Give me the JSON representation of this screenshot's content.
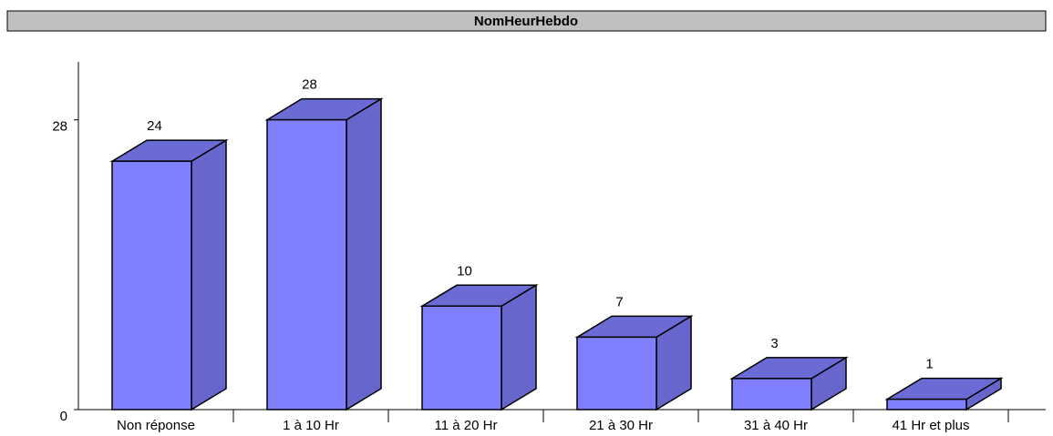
{
  "chart_data": {
    "type": "bar3d",
    "title": "NomHeurHebdo",
    "categories": [
      "Non réponse",
      "1 à 10 Hr",
      "11 à 20 Hr",
      "21 à 30 Hr",
      "31 à 40 Hr",
      "41 Hr et plus"
    ],
    "values": [
      24,
      28,
      10,
      7,
      3,
      1
    ],
    "color": "#8080ff",
    "ylim": [
      0,
      33.6
    ],
    "yticks": [
      0,
      28
    ],
    "grid": false
  }
}
